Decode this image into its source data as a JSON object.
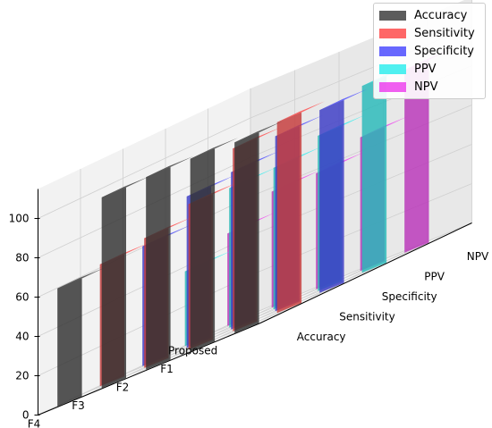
{
  "chart_data": {
    "type": "bar",
    "projection": "3d",
    "categories": [
      "Proposed",
      "F1",
      "F2",
      "F3",
      "F4"
    ],
    "series": [
      {
        "name": "Accuracy",
        "color": "#404040",
        "values": [
          97,
          98,
          98,
          97,
          60
        ]
      },
      {
        "name": "Sensitivity",
        "color": "#ff4d4d",
        "values": [
          97,
          93,
          74,
          66,
          62
        ]
      },
      {
        "name": "Specificity",
        "color": "#4d4dff",
        "values": [
          93,
          89,
          80,
          77,
          61
        ]
      },
      {
        "name": "PPV",
        "color": "#33eeee",
        "values": [
          95,
          79,
          72,
          71,
          38
        ]
      },
      {
        "name": "NPV",
        "color": "#ee44ee",
        "values": [
          93,
          68,
          59,
          59,
          47
        ]
      }
    ],
    "z_ticks": [
      "0",
      "20",
      "40",
      "60",
      "80",
      "100"
    ],
    "zlim": [
      0,
      100
    ],
    "grid": true,
    "legend_position": "top-right"
  }
}
